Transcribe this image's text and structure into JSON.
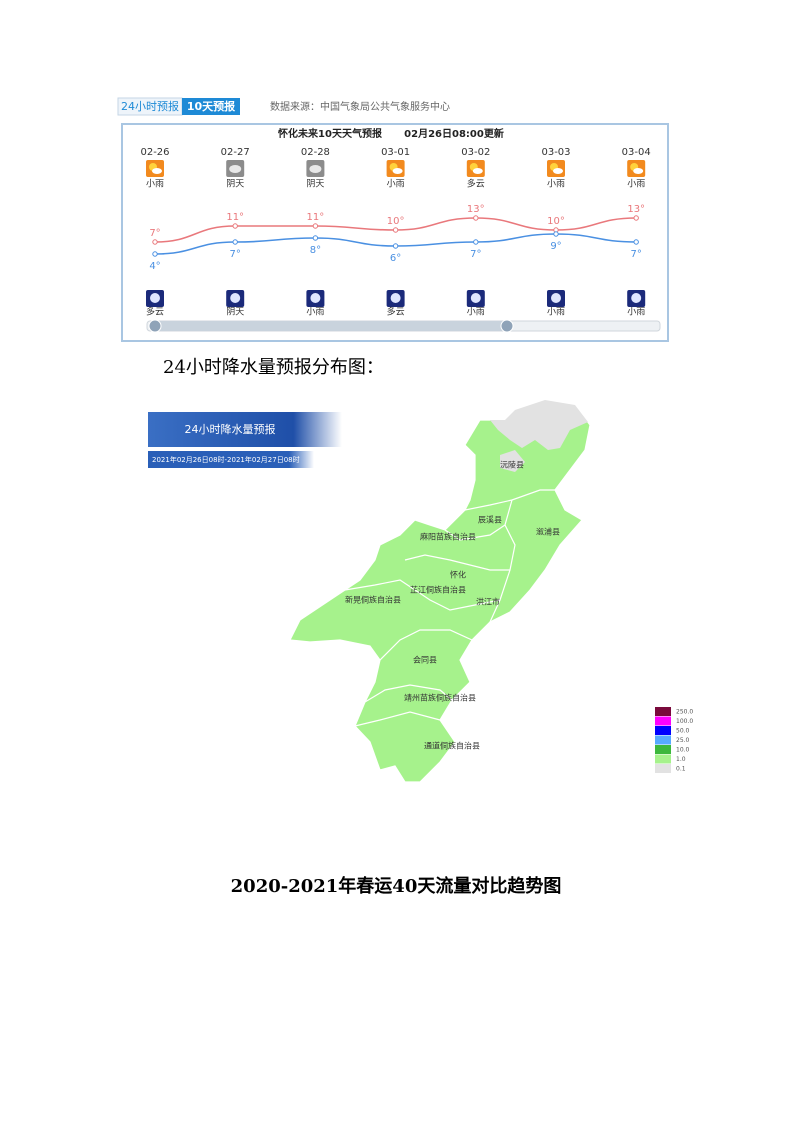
{
  "forecast": {
    "tabs": [
      "24小时预报",
      "10天预报"
    ],
    "source": "数据来源：中国气象局公共气象服务中心",
    "title": "怀化未来10天天气预报",
    "updated": "02月26日08:00更新",
    "dates": [
      "02-26",
      "02-27",
      "02-28",
      "03-01",
      "03-02",
      "03-03",
      "03-04"
    ],
    "day_weather": [
      "小雨",
      "阴天",
      "阴天",
      "小雨",
      "多云",
      "小雨",
      "小雨"
    ],
    "high": [
      7,
      11,
      11,
      10,
      13,
      10,
      13
    ],
    "high_labels": [
      "7°",
      "11°",
      "11°",
      "10°",
      "13°",
      "10°",
      "13°"
    ],
    "low": [
      4,
      7,
      8,
      6,
      7,
      9,
      7
    ],
    "low_labels": [
      "4°",
      "7°",
      "8°",
      "6°",
      "7°",
      "9°",
      "7°"
    ],
    "night_weather": [
      "多云",
      "阴天",
      "小雨",
      "多云",
      "小雨",
      "小雨",
      "小雨"
    ]
  },
  "caption": "24小时降水量预报分布图：",
  "map": {
    "title": "24小时降水量预报",
    "period": "2021年02月26日08时-2021年02月27日08时",
    "counties": [
      "沅陵县",
      "辰溪县",
      "溆浦县",
      "麻阳苗族自治县",
      "怀化",
      "芷江侗族自治县",
      "洪江市",
      "新晃侗族自治县",
      "会同县",
      "靖州苗族侗族自治县",
      "通道侗族自治县"
    ],
    "legend": [
      {
        "label": "250.0",
        "color": "#7a0a3c"
      },
      {
        "label": "100.0",
        "color": "#ff00ff"
      },
      {
        "label": "50.0",
        "color": "#0000ff"
      },
      {
        "label": "25.0",
        "color": "#57aaff"
      },
      {
        "label": "10.0",
        "color": "#3cb83c"
      },
      {
        "label": "1.0",
        "color": "#a6f28c"
      },
      {
        "label": "0.1",
        "color": "#e2e2e2"
      }
    ]
  },
  "heading": "2020-2021年春运40天流量对比趋势图"
}
